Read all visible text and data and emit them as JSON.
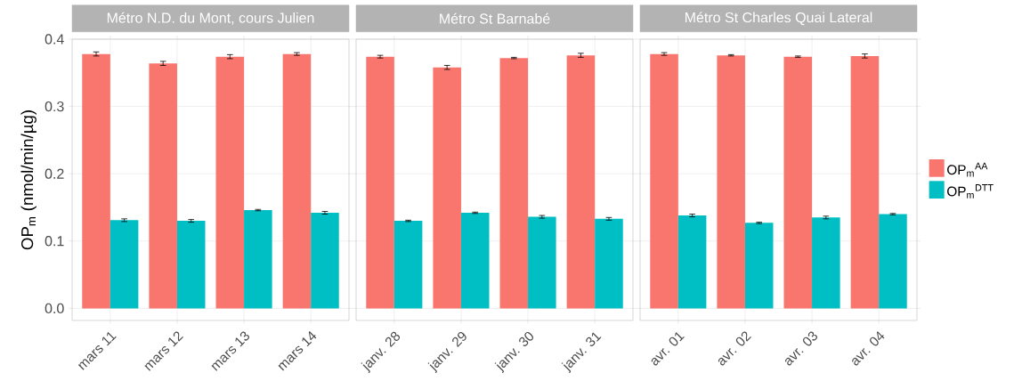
{
  "chart_data": [
    {
      "type": "bar",
      "title": "Métro N.D. du Mont, cours Julien",
      "ylabel": "OP$_{m}$ (nmol/min/µg)",
      "categories": [
        "mars 11",
        "mars 12",
        "mars 13",
        "mars 14"
      ],
      "series": [
        {
          "color": "#f8766d",
          "values": [
            0.378,
            0.364,
            0.374,
            0.378
          ],
          "errors": [
            0.003,
            0.003,
            0.003,
            0.002
          ]
        },
        {
          "color": "#00bfc4",
          "values": [
            0.131,
            0.13,
            0.146,
            0.142
          ],
          "errors": [
            0.002,
            0.002,
            0.001,
            0.002
          ]
        }
      ],
      "ylim": [
        -0.018,
        0.4
      ],
      "yticks": [
        {
          "value": 0,
          "label": "0.0"
        },
        0.1,
        0.2,
        0.3,
        0.4
      ],
      "grid": true
    },
    {
      "type": "bar",
      "title": "Métro St Barnabé",
      "categories": [
        "janv. 28",
        "janv. 29",
        "janv. 30",
        "janv. 31"
      ],
      "series": [
        {
          "color": "#f8766d",
          "values": [
            0.374,
            0.358,
            0.372,
            0.376
          ],
          "errors": [
            0.002,
            0.003,
            0.001,
            0.003
          ]
        },
        {
          "color": "#00bfc4",
          "values": [
            0.13,
            0.142,
            0.136,
            0.133
          ],
          "errors": [
            0.001,
            0.001,
            0.002,
            0.002
          ]
        }
      ],
      "ylim": [
        -0.018,
        0.4
      ],
      "yticks": [
        0,
        0.1,
        0.2,
        0.3,
        0.4
      ],
      "grid": true,
      "tick_labels": "x"
    },
    {
      "type": "bar",
      "title": "Métro St Charles Quai Lateral",
      "categories": [
        "avr. 01",
        "avr. 02",
        "avr. 03",
        "avr. 04"
      ],
      "series": [
        {
          "name": "OP$_{m}$$^{AA}$",
          "color": "#f8766d",
          "values": [
            0.378,
            0.376,
            0.374,
            0.375
          ],
          "errors": [
            0.002,
            0.001,
            0.001,
            0.003
          ]
        },
        {
          "name": "OP$_{m}$$^{DTT}$",
          "color": "#00bfc4",
          "values": [
            0.138,
            0.127,
            0.135,
            0.14
          ],
          "errors": [
            0.002,
            0.001,
            0.002,
            0.001
          ]
        }
      ],
      "ylim": [
        -0.018,
        0.4
      ],
      "yticks": [
        0,
        0.1,
        0.2,
        0.3,
        0.4
      ],
      "grid": true,
      "tick_labels": "x",
      "legend": "right"
    }
  ]
}
